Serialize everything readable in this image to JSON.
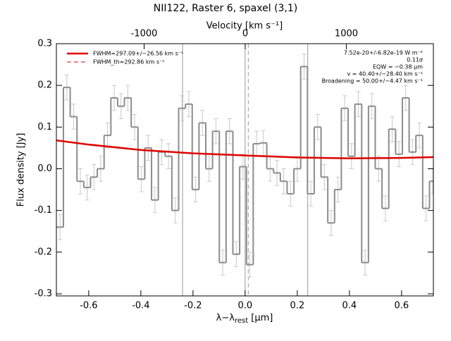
{
  "chart_data": {
    "type": "step",
    "title": "NII122, Raster 6, spaxel (3,1)",
    "xlabel": "λ−λ",
    "xlabel_sub": "rest",
    "xlabel_unit": " [μm]",
    "ylabel": "Flux density [Jy]",
    "x2label": "Velocity [km s⁻¹]",
    "xlim": [
      -0.724,
      0.722
    ],
    "ylim": [
      -0.305,
      0.3
    ],
    "x2lim": [
      -1868,
      1861
    ],
    "xticks": [
      -0.6,
      -0.4,
      -0.2,
      {
        "value": 0,
        "label": "0.0"
      },
      0.2,
      0.4,
      0.6
    ],
    "yticks": [
      -0.3,
      -0.2,
      -0.1,
      {
        "value": 0,
        "label": "0.0"
      },
      0.1,
      0.2,
      0.3
    ],
    "x2ticks": [
      -1000,
      0,
      1000
    ],
    "x": [
      -0.71,
      -0.684,
      -0.658,
      -0.632,
      -0.606,
      -0.58,
      -0.554,
      -0.528,
      -0.502,
      -0.476,
      -0.45,
      -0.424,
      -0.398,
      -0.372,
      -0.346,
      -0.32,
      -0.294,
      -0.268,
      -0.242,
      -0.216,
      -0.19,
      -0.164,
      -0.138,
      -0.112,
      -0.086,
      -0.06,
      -0.034,
      -0.008,
      0.018,
      0.044,
      0.07,
      0.096,
      0.122,
      0.148,
      0.174,
      0.2,
      0.226,
      0.252,
      0.278,
      0.304,
      0.33,
      0.356,
      0.382,
      0.408,
      0.434,
      0.46,
      0.486,
      0.512,
      0.538,
      0.564,
      0.59,
      0.616,
      0.642,
      0.668,
      0.694,
      0.72
    ],
    "series": [
      {
        "name": "spectrum",
        "color": "#8c8c8c",
        "values": [
          -0.14,
          0.195,
          0.125,
          -0.03,
          -0.045,
          -0.02,
          0.0,
          0.08,
          0.17,
          0.15,
          0.17,
          0.1,
          -0.025,
          0.05,
          -0.075,
          0.04,
          0.03,
          -0.1,
          0.145,
          0.155,
          -0.05,
          0.11,
          0.0,
          0.09,
          -0.225,
          0.09,
          -0.205,
          0.005,
          -0.23,
          0.06,
          0.062,
          0.0,
          -0.01,
          -0.03,
          -0.06,
          0.0,
          0.245,
          -0.06,
          0.1,
          -0.02,
          -0.13,
          -0.05,
          0.145,
          0.03,
          0.155,
          -0.225,
          0.15,
          0.0,
          -0.095,
          0.095,
          0.035,
          0.17,
          0.04,
          0.08,
          -0.095,
          -0.03
        ],
        "errors": [
          0.03,
          0.03,
          0.03,
          0.03,
          0.03,
          0.03,
          0.03,
          0.03,
          0.03,
          0.03,
          0.03,
          0.03,
          0.03,
          0.03,
          0.03,
          0.03,
          0.03,
          0.03,
          0.03,
          0.03,
          0.03,
          0.03,
          0.03,
          0.03,
          0.03,
          0.03,
          0.03,
          0.03,
          0.03,
          0.03,
          0.03,
          0.03,
          0.03,
          0.03,
          0.03,
          0.03,
          0.03,
          0.03,
          0.03,
          0.03,
          0.03,
          0.03,
          0.03,
          0.03,
          0.03,
          0.03,
          0.03,
          0.03,
          0.03,
          0.03,
          0.03,
          0.03,
          0.03,
          0.03,
          0.03,
          0.03
        ]
      }
    ],
    "fit": {
      "name": "FWHM=297.09+/−26.56 km s⁻¹",
      "color": "#e00000",
      "x": [
        -0.724,
        -0.6,
        -0.4,
        -0.2,
        0.0,
        0.2,
        0.4,
        0.6,
        0.722
      ],
      "values": [
        0.068,
        0.058,
        0.045,
        0.037,
        0.032,
        0.027,
        0.025,
        0.026,
        0.028
      ]
    },
    "fit_th": {
      "name": "FWHM_th=292.86 km s⁻¹",
      "color": "#e00000"
    },
    "vlines": [
      -0.24,
      0.0,
      0.24
    ],
    "vline_dashed": 0.012,
    "annotations": [
      "7.52e-20+/-6.82e-19 W m⁻²",
      "0.11σ",
      "EQW = −0.38 μm",
      "v = 40.40+/−28.40 km s⁻¹",
      "Broadening = 50.00+/−4.47 km s⁻¹"
    ]
  }
}
